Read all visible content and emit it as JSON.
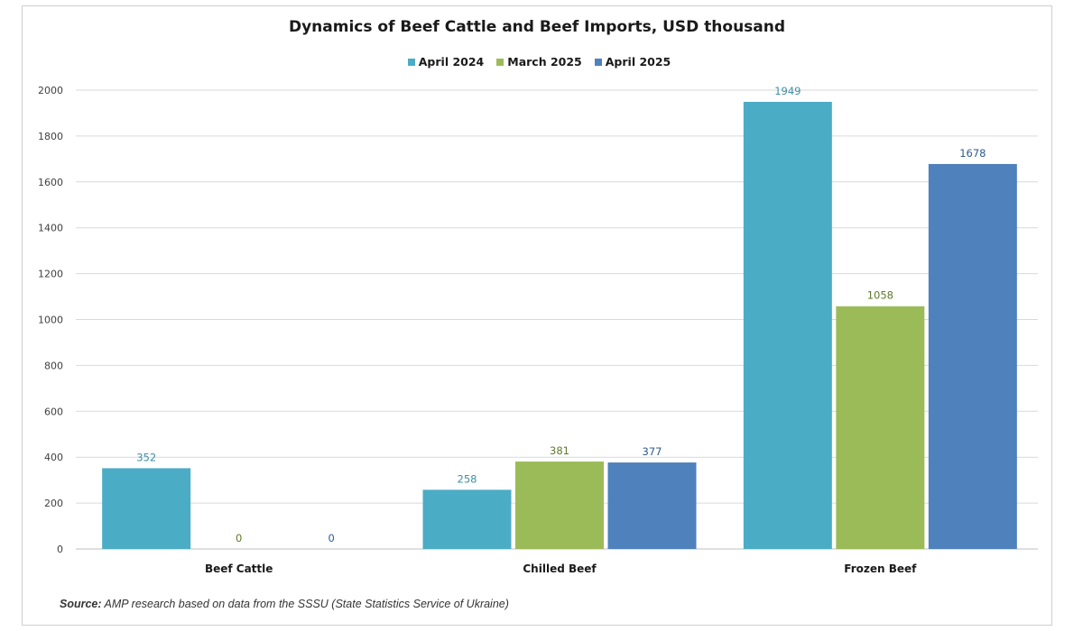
{
  "chart_data": {
    "type": "bar",
    "title": "Dynamics of Beef Cattle and Beef Imports, USD thousand",
    "categories": [
      "Beef Cattle",
      "Chilled Beef",
      "Frozen Beef"
    ],
    "series": [
      {
        "name": "April 2024",
        "values": [
          352,
          258,
          1949
        ],
        "color": "#4bacc6",
        "label_color": "#3e8fa6"
      },
      {
        "name": "March 2025",
        "values": [
          0,
          381,
          1058
        ],
        "color": "#9bbb59",
        "label_color": "#5e7a2a"
      },
      {
        "name": "April 2025",
        "values": [
          0,
          377,
          1678
        ],
        "color": "#4f81bd",
        "label_color": "#2f5b8f"
      }
    ],
    "ylim": [
      0,
      2000
    ],
    "yticks": [
      0,
      200,
      400,
      600,
      800,
      1000,
      1200,
      1400,
      1600,
      1800,
      2000
    ],
    "xlabel": "",
    "ylabel": "",
    "grid": true,
    "legend_position": "top"
  },
  "source": {
    "label": "Source:",
    "text": " AMP research based on data from the SSSU (State Statistics Service of Ukraine)"
  }
}
